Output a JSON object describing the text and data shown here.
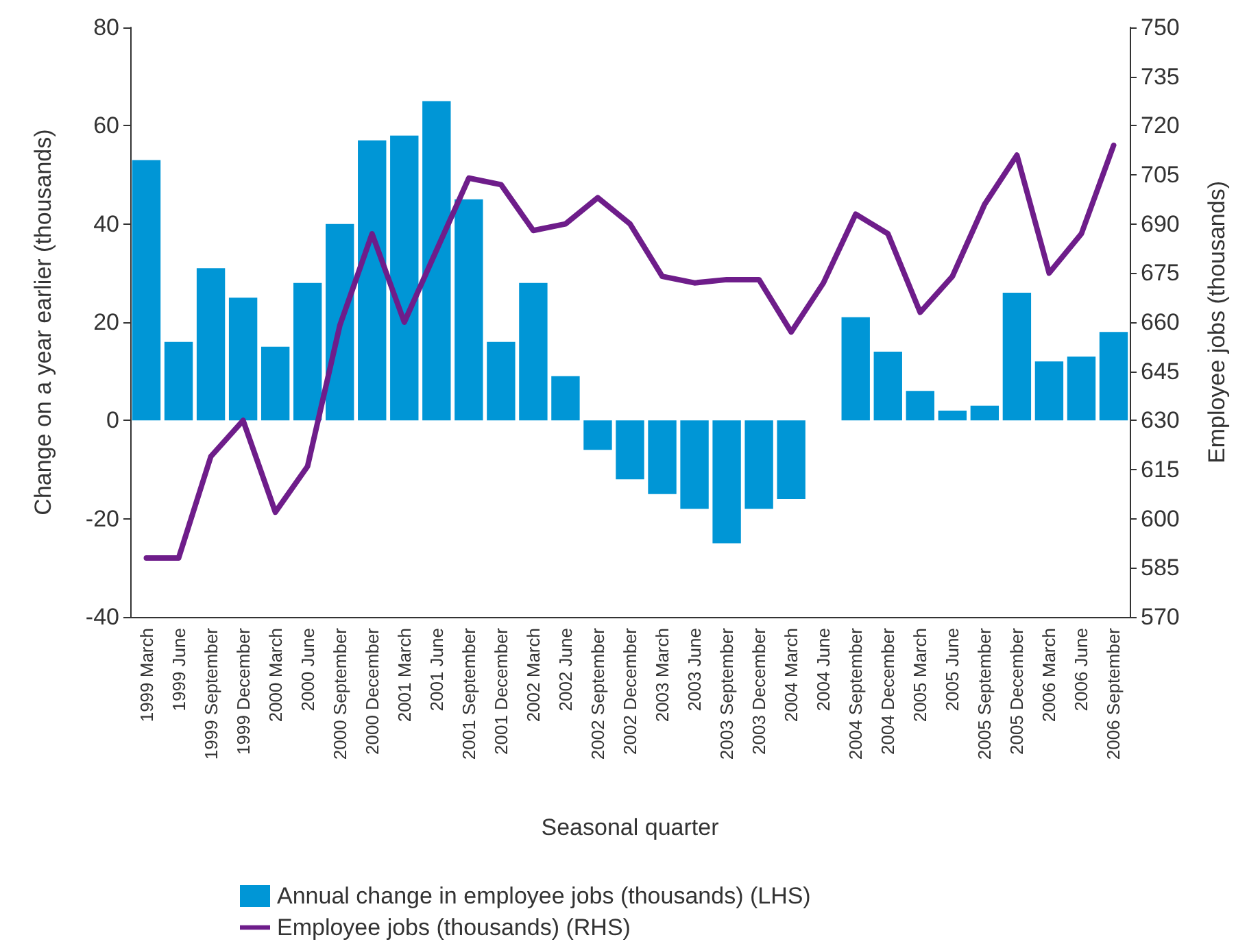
{
  "chart_data": {
    "type": "bar",
    "xlabel": "Seasonal quarter",
    "ylabel": "Change on a year earlier (thousands)",
    "y2label": "Employee jobs (thousands)",
    "categories": [
      "1999 March",
      "1999 June",
      "1999 September",
      "1999 December",
      "2000 March",
      "2000 June",
      "2000 September",
      "2000 December",
      "2001 March",
      "2001 June",
      "2001 September",
      "2001 December",
      "2002 March",
      "2002 June",
      "2002 September",
      "2002 December",
      "2003 March",
      "2003 June",
      "2003 September",
      "2003 December",
      "2004 March",
      "2004 June",
      "2004 September",
      "2004 December",
      "2005 March",
      "2005 June",
      "2005 September",
      "2005 December",
      "2006 March",
      "2006 June",
      "2006 September"
    ],
    "series": [
      {
        "name": "Annual change in employee jobs (thousands) (LHS)",
        "color": "#0096d6",
        "values": [
          53,
          16,
          31,
          25,
          15,
          28,
          40,
          57,
          58,
          65,
          45,
          16,
          28,
          9,
          -6,
          -12,
          -15,
          -18,
          -25,
          -18,
          -16,
          0,
          21,
          14,
          6,
          2,
          3,
          26,
          12,
          13,
          18
        ]
      },
      {
        "name": "Employee jobs (thousands) (RHS)",
        "type": "line",
        "axis": "y2",
        "color": "#6e1d8a",
        "marker": "none",
        "line_style": "solid",
        "values": [
          588,
          588,
          619,
          630,
          602,
          616,
          659,
          687,
          660,
          682,
          704,
          702,
          688,
          690,
          698,
          690,
          674,
          672,
          673,
          673,
          657,
          672,
          693,
          687,
          663,
          674,
          696,
          711,
          675,
          687,
          714
        ]
      }
    ],
    "ylim": [
      -40,
      80
    ],
    "yticks": [
      -40,
      -20,
      0,
      20,
      40,
      60,
      80
    ],
    "y2lim": [
      570,
      750
    ],
    "y2ticks": [
      570,
      585,
      600,
      615,
      630,
      645,
      660,
      675,
      690,
      705,
      720,
      735,
      750
    ],
    "grid": false,
    "legend": "bottom"
  }
}
